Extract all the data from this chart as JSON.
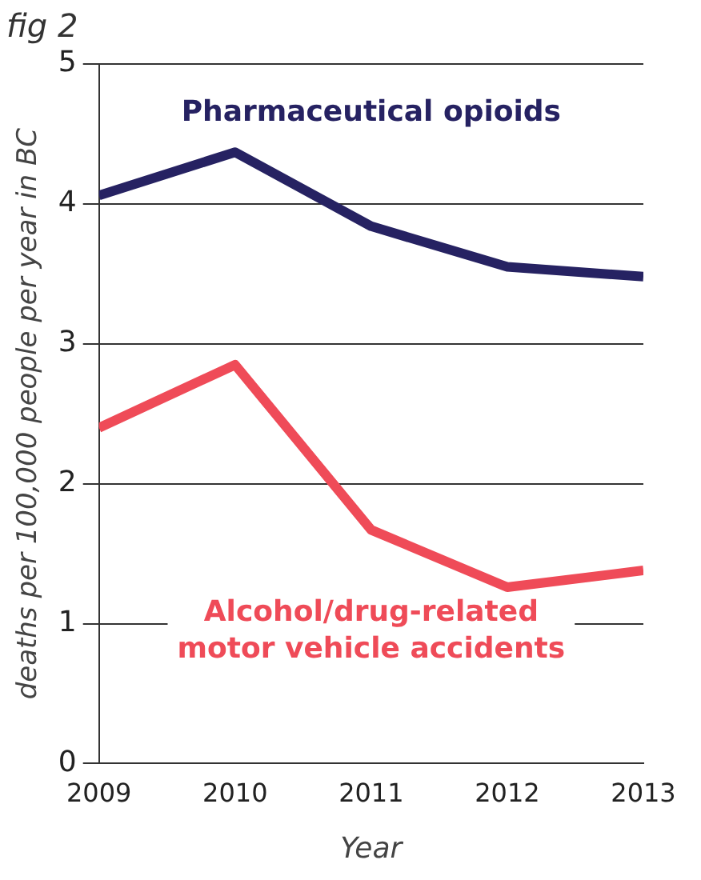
{
  "chart_data": {
    "type": "line",
    "title": "fig 2",
    "xlabel": "Year",
    "ylabel": "deaths per 100,000 people per year in BC",
    "x": [
      2009,
      2010,
      2011,
      2012,
      2013
    ],
    "series": [
      {
        "name": "Pharmaceutical opioids",
        "color": "#262262",
        "values": [
          4.06,
          4.37,
          3.84,
          3.55,
          3.48
        ]
      },
      {
        "name": "Alcohol/drug-related motor vehicle accidents",
        "color": "#ef4b58",
        "values": [
          2.4,
          2.85,
          1.67,
          1.26,
          1.38
        ]
      }
    ],
    "xlim": [
      2009,
      2013
    ],
    "xticks": [
      2009,
      2010,
      2011,
      2012,
      2013
    ],
    "ylim": [
      0,
      5
    ],
    "yticks": [
      0,
      1,
      2,
      3,
      4,
      5
    ],
    "grid": "y",
    "legend": false,
    "marker": "none",
    "line_style": "solid"
  }
}
